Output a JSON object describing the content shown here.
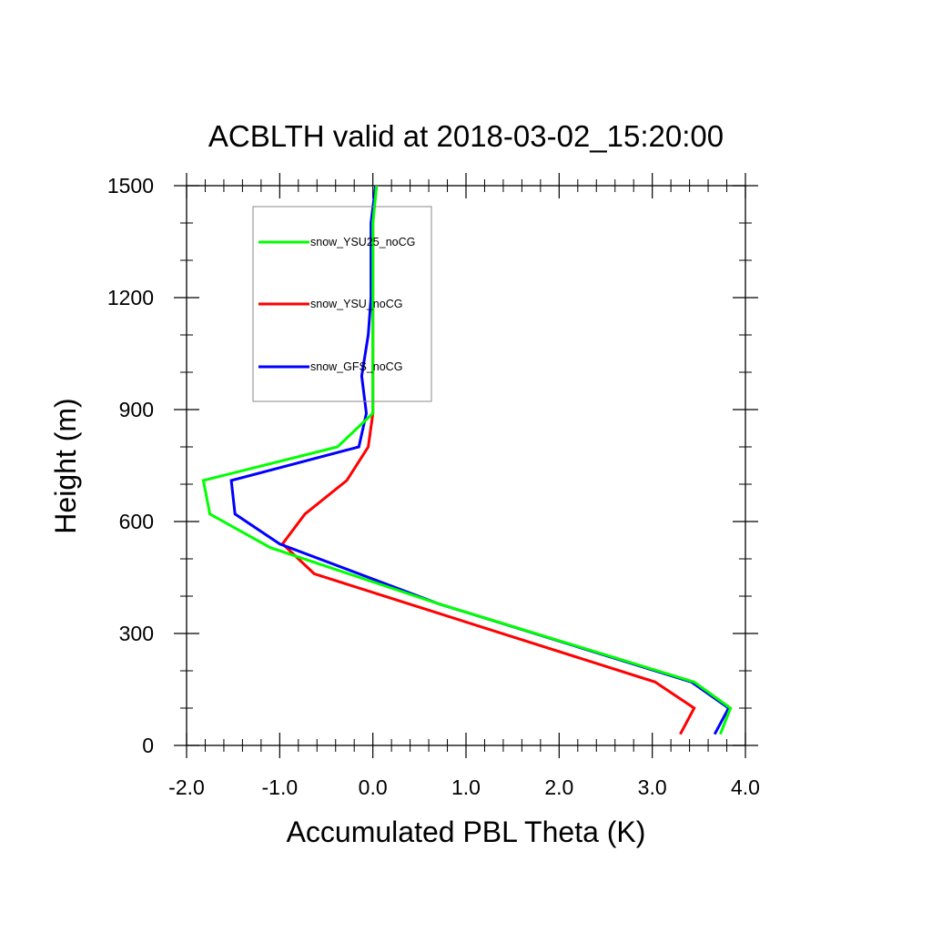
{
  "chart_data": {
    "type": "line",
    "title": "ACBLTH valid at 2018-03-02_15:20:00",
    "xlabel": "Accumulated PBL Theta (K)",
    "ylabel": "Height (m)",
    "xlim": [
      -2.0,
      4.0
    ],
    "ylim": [
      0,
      1500
    ],
    "xticks": [
      -2.0,
      -1.0,
      0.0,
      1.0,
      2.0,
      3.0,
      4.0
    ],
    "xtick_labels": [
      "-2.0",
      "-1.0",
      "0.0",
      "1.0",
      "2.0",
      "3.0",
      "4.0"
    ],
    "yticks": [
      0,
      300,
      600,
      900,
      1200,
      1500
    ],
    "ytick_labels": [
      "0",
      "300",
      "600",
      "900",
      "1200",
      "1500"
    ],
    "legend_position": "upper-left inside plot",
    "grid": false,
    "series": [
      {
        "name": "snow_YSU25_noCG",
        "color": "#00ff00",
        "points": [
          [
            3.73,
            30
          ],
          [
            3.84,
            100
          ],
          [
            3.45,
            170
          ],
          [
            0.7,
            380
          ],
          [
            -1.1,
            530
          ],
          [
            -1.75,
            620
          ],
          [
            -1.82,
            710
          ],
          [
            -0.38,
            800
          ],
          [
            0.0,
            890
          ],
          [
            0.0,
            1000
          ],
          [
            0.0,
            1200
          ],
          [
            0.0,
            1400
          ],
          [
            0.04,
            1500
          ]
        ]
      },
      {
        "name": "snow_YSU_noCG",
        "color": "#ff0000",
        "points": [
          [
            3.3,
            30
          ],
          [
            3.45,
            100
          ],
          [
            3.03,
            170
          ],
          [
            0.25,
            390
          ],
          [
            -0.63,
            460
          ],
          [
            -0.97,
            540
          ],
          [
            -0.73,
            620
          ],
          [
            -0.28,
            710
          ],
          [
            -0.05,
            800
          ],
          [
            0.0,
            890
          ],
          [
            0.0,
            1000
          ],
          [
            0.0,
            1200
          ],
          [
            0.0,
            1400
          ],
          [
            0.03,
            1500
          ]
        ]
      },
      {
        "name": "snow_GFS_noCG",
        "color": "#0000ff",
        "points": [
          [
            3.67,
            30
          ],
          [
            3.82,
            100
          ],
          [
            3.42,
            170
          ],
          [
            0.7,
            380
          ],
          [
            -1.0,
            540
          ],
          [
            -1.48,
            620
          ],
          [
            -1.52,
            710
          ],
          [
            -0.15,
            800
          ],
          [
            -0.07,
            890
          ],
          [
            -0.12,
            990
          ],
          [
            -0.05,
            1100
          ],
          [
            -0.02,
            1200
          ],
          [
            -0.02,
            1400
          ],
          [
            0.03,
            1500
          ]
        ]
      }
    ]
  }
}
